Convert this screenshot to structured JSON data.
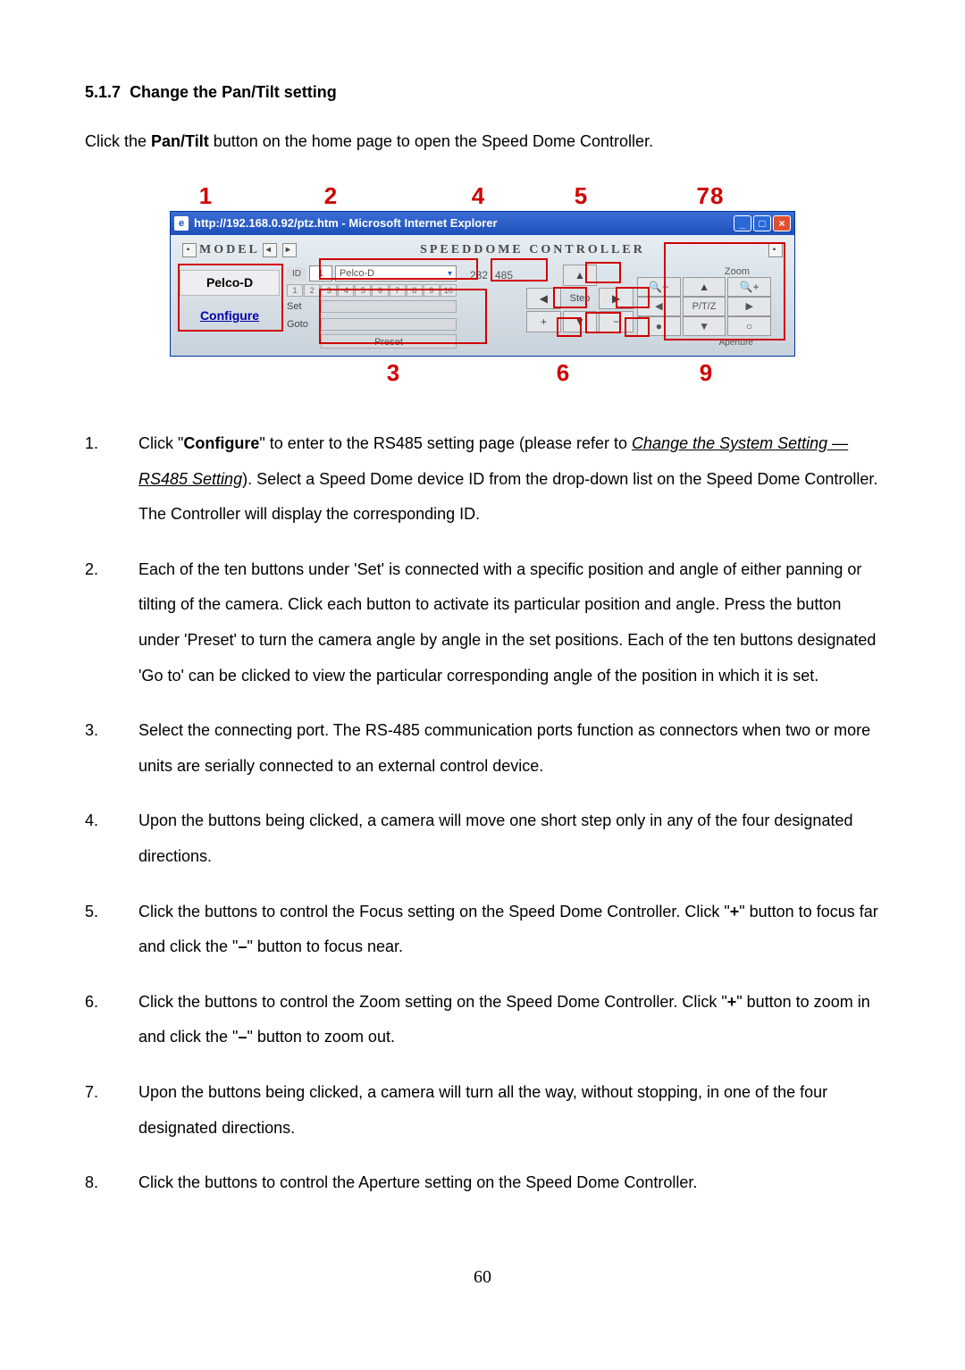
{
  "section": {
    "number": "5.1.7",
    "title": "Change the Pan/Tilt setting"
  },
  "intro": {
    "pre": "Click the ",
    "bold": "Pan/Tilt",
    "post": " button on the home page to open the Speed Dome Controller."
  },
  "callouts_top": {
    "n1": "1",
    "n2": "2",
    "n4": "4",
    "n5": "5",
    "n78": "78"
  },
  "callouts_bot": {
    "n3": "3",
    "n6": "6",
    "n9": "9"
  },
  "window": {
    "title": "http://192.168.0.92/ptz.htm - Microsoft Internet Explorer",
    "header_left": "MODEL",
    "header_right": "SPEEDDOME CONTROLLER",
    "model_name": "Pelco-D",
    "configure": "Configure",
    "id_label": "ID",
    "id_value": "1",
    "dd_value": "Pelco-D",
    "set_label": "Set",
    "goto_label": "Goto",
    "preset_label": "Preset",
    "port_232": "232",
    "port_485": "485",
    "step_label": "Step",
    "zoom_label": "Zoom",
    "ptz_label": "P/T/Z",
    "aperture_label": "Aperture",
    "focus_label": "Focus",
    "numbers": [
      "1",
      "2",
      "3",
      "4",
      "5",
      "6",
      "7",
      "8",
      "9",
      "10"
    ]
  },
  "list": {
    "i1": {
      "a": "Click \"",
      "b": "Configure",
      "c": "\" to enter to the RS485 setting page (please refer to ",
      "u": "Change the System Setting — RS485 Setting",
      "d": "). Select a Speed Dome device ID from the drop-down list on the Speed Dome Controller. The Controller will display the corresponding ID."
    },
    "i2": "Each of the ten buttons under 'Set' is connected with a specific position and angle of either panning or tilting of the camera. Click each button to activate its particular position and angle. Press the button under 'Preset' to turn the camera angle by angle in the set positions. Each of the ten buttons designated 'Go to' can be clicked to view the particular corresponding angle of the position in which it is set.",
    "i3": "Select the connecting port. The RS-485 communication ports function as connectors when two or more units are serially connected to an external control device.",
    "i4": "Upon the buttons being clicked, a camera will move one short step only in any of the four designated directions.",
    "i5": {
      "a": "Click the buttons to control the Focus setting on the Speed Dome Controller. Click \"",
      "p": "+",
      "b": "\" button to focus far and click the \"",
      "m": "–",
      "c": "\" button to focus near."
    },
    "i6": {
      "a": "Click the buttons to control the Zoom setting on the Speed Dome Controller. Click \"",
      "p": "+",
      "b": "\" button to zoom in and click the \"",
      "m": "–",
      "c": "\" button to zoom out."
    },
    "i7": "Upon the buttons being clicked, a camera will turn all the way, without stopping, in one of the four designated directions.",
    "i8": "Click the buttons to control the Aperture setting on the Speed Dome Controller."
  },
  "page_number": "60"
}
